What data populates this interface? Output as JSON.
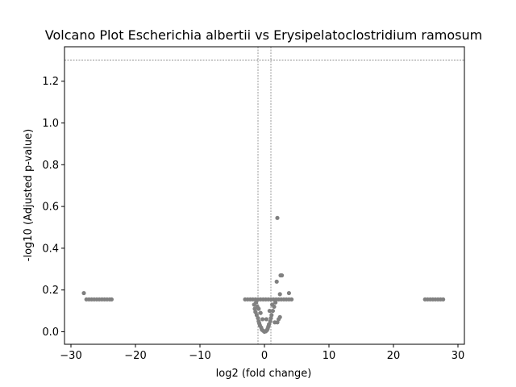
{
  "chart_data": {
    "type": "scatter",
    "title": "Volcano Plot Escherichia albertii vs Erysipelatoclostridium ramosum",
    "xlabel": "log2 (fold change)",
    "ylabel": "-log10 (Adjusted p-value)",
    "xlim": [
      -31,
      31
    ],
    "ylim": [
      -0.06,
      1.365
    ],
    "xticks": [
      -30,
      -20,
      -10,
      0,
      10,
      20,
      30
    ],
    "xtick_labels": [
      "−30",
      "−20",
      "−10",
      "0",
      "10",
      "20",
      "30"
    ],
    "yticks": [
      0.0,
      0.2,
      0.4,
      0.6,
      0.8,
      1.0,
      1.2
    ],
    "ytick_labels": [
      "0.0",
      "0.2",
      "0.4",
      "0.6",
      "0.8",
      "1.0",
      "1.2"
    ],
    "threshold_y": 1.301,
    "threshold_x": [
      -1,
      1
    ],
    "point_color": "#808080",
    "threshold_color": "#808080",
    "series": [
      {
        "name": "genes",
        "points": [
          [
            -28.0,
            0.185
          ],
          [
            -27.6,
            0.155
          ],
          [
            -27.2,
            0.155
          ],
          [
            -26.8,
            0.155
          ],
          [
            -26.4,
            0.155
          ],
          [
            -26.0,
            0.155
          ],
          [
            -25.6,
            0.155
          ],
          [
            -25.2,
            0.155
          ],
          [
            -24.8,
            0.155
          ],
          [
            -24.4,
            0.155
          ],
          [
            -24.0,
            0.155
          ],
          [
            -23.7,
            0.155
          ],
          [
            24.9,
            0.155
          ],
          [
            25.3,
            0.155
          ],
          [
            25.7,
            0.155
          ],
          [
            26.1,
            0.155
          ],
          [
            26.5,
            0.155
          ],
          [
            26.9,
            0.155
          ],
          [
            27.3,
            0.155
          ],
          [
            27.7,
            0.155
          ],
          [
            -3.0,
            0.155
          ],
          [
            -2.6,
            0.155
          ],
          [
            -2.2,
            0.155
          ],
          [
            -1.8,
            0.155
          ],
          [
            -1.4,
            0.155
          ],
          [
            -1.0,
            0.155
          ],
          [
            -0.6,
            0.155
          ],
          [
            -0.2,
            0.155
          ],
          [
            0.2,
            0.155
          ],
          [
            0.6,
            0.155
          ],
          [
            1.0,
            0.155
          ],
          [
            1.4,
            0.155
          ],
          [
            1.8,
            0.155
          ],
          [
            2.2,
            0.155
          ],
          [
            2.6,
            0.155
          ],
          [
            3.0,
            0.155
          ],
          [
            3.4,
            0.155
          ],
          [
            3.8,
            0.155
          ],
          [
            4.2,
            0.155
          ],
          [
            -1.6,
            0.13
          ],
          [
            -1.5,
            0.11
          ],
          [
            -1.4,
            0.095
          ],
          [
            -1.2,
            0.08
          ],
          [
            -1.0,
            0.065
          ],
          [
            -0.9,
            0.05
          ],
          [
            -0.8,
            0.04
          ],
          [
            -0.7,
            0.03
          ],
          [
            -0.5,
            0.02
          ],
          [
            -0.4,
            0.01
          ],
          [
            -0.2,
            0.005
          ],
          [
            0.0,
            0.0
          ],
          [
            0.2,
            0.002
          ],
          [
            0.4,
            0.008
          ],
          [
            0.5,
            0.015
          ],
          [
            0.6,
            0.025
          ],
          [
            0.7,
            0.035
          ],
          [
            0.9,
            0.05
          ],
          [
            1.0,
            0.065
          ],
          [
            1.1,
            0.08
          ],
          [
            1.3,
            0.1
          ],
          [
            1.5,
            0.12
          ],
          [
            1.7,
            0.14
          ],
          [
            -0.6,
            0.09
          ],
          [
            -0.3,
            0.06
          ],
          [
            0.3,
            0.06
          ],
          [
            0.8,
            0.1
          ],
          [
            -1.1,
            0.12
          ],
          [
            1.2,
            0.13
          ],
          [
            -1.3,
            0.14
          ],
          [
            -0.9,
            0.11
          ],
          [
            1.6,
            0.045
          ],
          [
            2.0,
            0.045
          ],
          [
            2.2,
            0.06
          ],
          [
            2.4,
            0.07
          ],
          [
            1.9,
            0.24
          ],
          [
            2.0,
            0.545
          ],
          [
            2.5,
            0.27
          ],
          [
            2.7,
            0.27
          ],
          [
            2.4,
            0.18
          ],
          [
            3.8,
            0.185
          ]
        ]
      }
    ]
  }
}
